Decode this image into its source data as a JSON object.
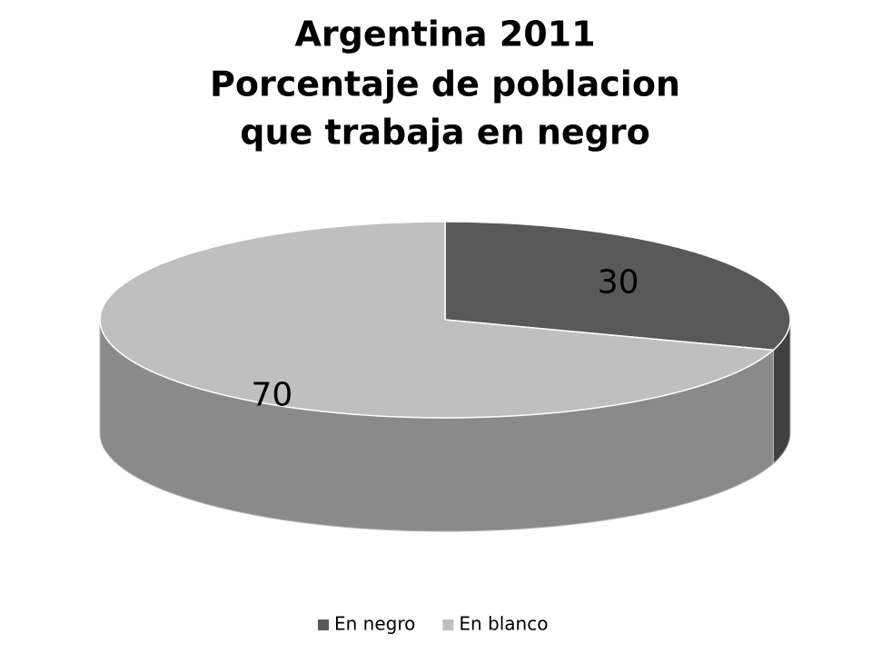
{
  "chart_data": {
    "type": "pie",
    "title": [
      "Argentina 2011",
      "Porcentaje de poblacion",
      "que trabaja en negro"
    ],
    "categories": [
      "En negro",
      "En blanco"
    ],
    "values": [
      30,
      70
    ],
    "colors": [
      "#595959",
      "#bfbfbf"
    ],
    "legend": "bottom"
  }
}
